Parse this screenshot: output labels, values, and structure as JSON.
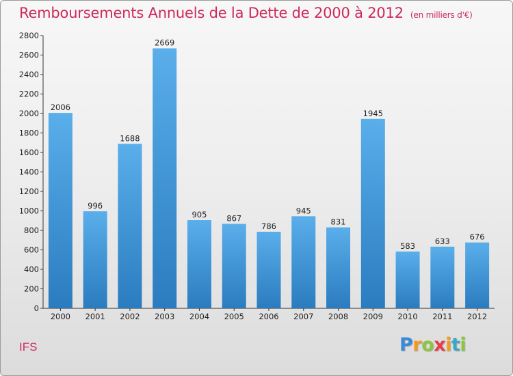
{
  "title": "Remboursements Annuels de la Dette de 2000 à 2012",
  "subtitle": "(en milliers d'€)",
  "commune": "IFS",
  "logo": {
    "letters": [
      "P",
      "r",
      "o",
      "x",
      "i",
      "t",
      "i"
    ],
    "colors": [
      "#3a8ad6",
      "#f29a1f",
      "#8cc63e",
      "#e73c4a",
      "#f29a1f",
      "#3aa7c8",
      "#8cc63e"
    ]
  },
  "colors": {
    "bar_top": "#5aaeea",
    "bar_bottom": "#2a7cbf",
    "title": "#cc2a5a",
    "axis": "#333333"
  },
  "chart_data": {
    "type": "bar",
    "title": "Remboursements Annuels de la Dette de 2000 à 2012",
    "subtitle": "(en milliers d'€)",
    "xlabel": "",
    "ylabel": "",
    "ylim": [
      0,
      2800
    ],
    "yticks": [
      0,
      200,
      400,
      600,
      800,
      1000,
      1200,
      1400,
      1600,
      1800,
      2000,
      2200,
      2400,
      2600,
      2800
    ],
    "grid": false,
    "categories": [
      "2000",
      "2001",
      "2002",
      "2003",
      "2004",
      "2005",
      "2006",
      "2007",
      "2008",
      "2009",
      "2010",
      "2011",
      "2012"
    ],
    "values": [
      2006,
      996,
      1688,
      2669,
      905,
      867,
      786,
      945,
      831,
      1945,
      583,
      633,
      676
    ]
  }
}
